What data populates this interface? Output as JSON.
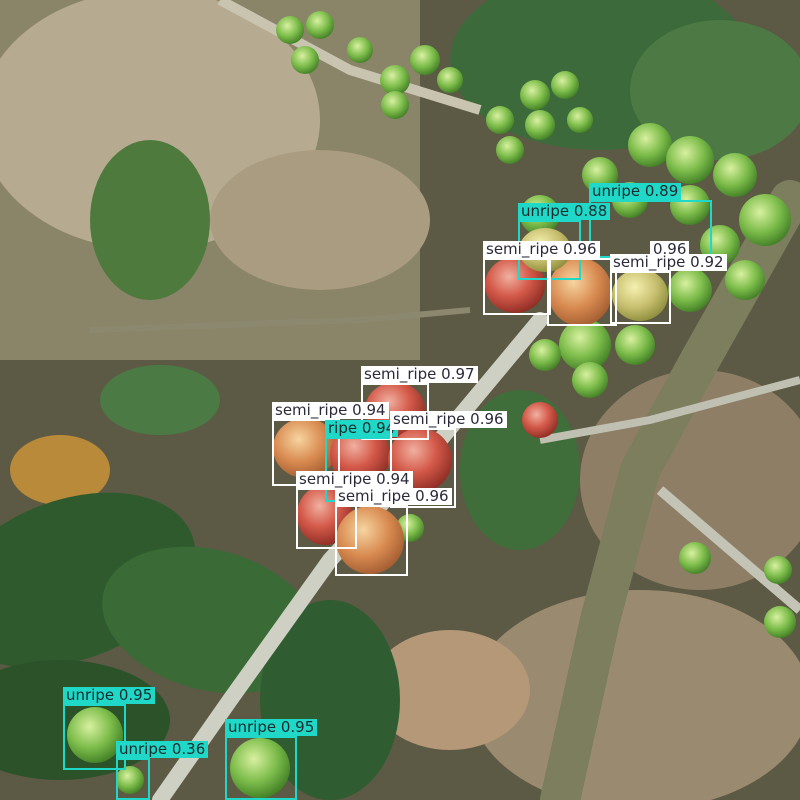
{
  "image": {
    "description_icon": "coffee-cherries-photo",
    "colors": {
      "semi_ripe_box": "#ffffff",
      "unripe_box": "#20d8c8"
    }
  },
  "detections": [
    {
      "class": "unripe",
      "score": "0.89",
      "label": "unripe 0.89"
    },
    {
      "class": "unripe",
      "score": "0.88",
      "label": "unripe 0.88"
    },
    {
      "class": "semi_ripe",
      "score": "0.96",
      "label": "semi_ripe 0.96"
    },
    {
      "class": "semi_ripe",
      "score": "0.96",
      "label": "0.96"
    },
    {
      "class": "semi_ripe",
      "score": "0.92",
      "label": "semi_ripe 0.92"
    },
    {
      "class": "semi_ripe",
      "score": "0.97",
      "label": "semi_ripe 0.97"
    },
    {
      "class": "semi_ripe",
      "score": "0.94",
      "label": "semi_ripe 0.94"
    },
    {
      "class": "unripe",
      "score": "0.94",
      "label": "ripe 0.94"
    },
    {
      "class": "semi_ripe",
      "score": "0.96",
      "label": "semi_ripe 0.96"
    },
    {
      "class": "semi_ripe",
      "score": "0.94",
      "label": "semi_ripe 0.94"
    },
    {
      "class": "semi_ripe",
      "score": "0.96",
      "label": "semi_ripe 0.96"
    },
    {
      "class": "unripe",
      "score": "0.95",
      "label": "unripe 0.95"
    },
    {
      "class": "unripe",
      "score": "0.36",
      "label": "unripe 0.36"
    },
    {
      "class": "unripe",
      "score": "0.95",
      "label": "unripe 0.95"
    }
  ]
}
